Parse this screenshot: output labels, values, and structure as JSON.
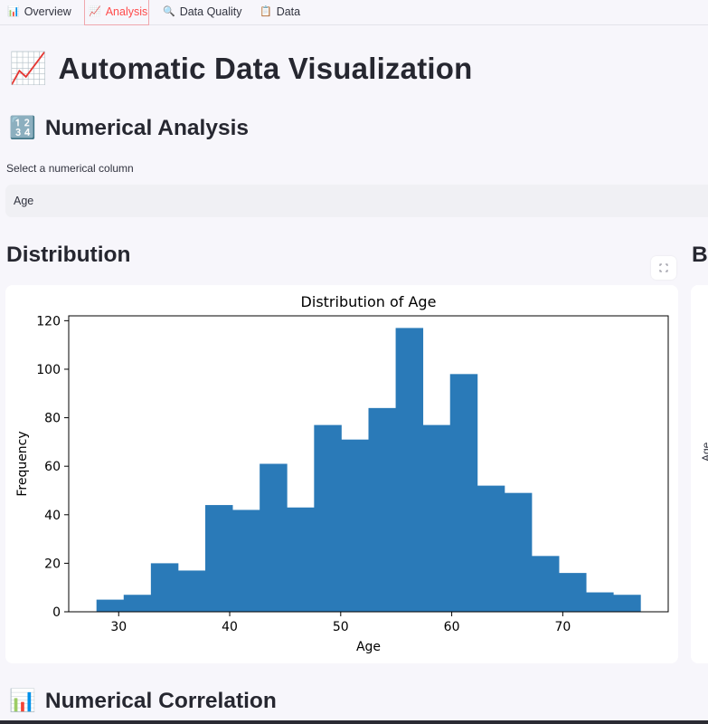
{
  "tabs": [
    {
      "icon": "📊",
      "label": "Overview",
      "active": false
    },
    {
      "icon": "📈",
      "label": "Analysis",
      "active": true
    },
    {
      "icon": "🔍",
      "label": "Data Quality",
      "active": false
    },
    {
      "icon": "📋",
      "label": "Data",
      "active": false
    }
  ],
  "page": {
    "title_icon": "📈",
    "title": "Automatic Data Visualization",
    "numerical_icon": "🔢",
    "numerical_heading": "Numerical Analysis",
    "select_label": "Select a numerical column",
    "select_value": "Age",
    "distribution_heading": "Distribution",
    "box_heading_partial": "Bo",
    "box_axis_partial": "Age",
    "correlation_icon": "📊",
    "correlation_heading": "Numerical Correlation",
    "expand_icon": "expand-icon"
  },
  "chart_data": {
    "type": "bar",
    "title": "Distribution of Age",
    "xlabel": "Age",
    "ylabel": "Frequency",
    "bin_edges": [
      28,
      30.45,
      32.9,
      35.35,
      37.8,
      40.25,
      42.7,
      45.15,
      47.6,
      50.05,
      52.5,
      54.95,
      57.4,
      59.85,
      62.3,
      64.75,
      67.2,
      69.65,
      72.1,
      74.55,
      77
    ],
    "values": [
      5,
      7,
      20,
      17,
      44,
      42,
      61,
      43,
      77,
      71,
      84,
      117,
      77,
      98,
      52,
      49,
      23,
      16,
      8,
      7
    ],
    "xlim": [
      25.5,
      79.5
    ],
    "ylim": [
      0,
      122
    ],
    "xticks": [
      30,
      40,
      50,
      60,
      70
    ],
    "yticks": [
      0,
      20,
      40,
      60,
      80,
      100,
      120
    ],
    "bar_color": "#2a7ab8",
    "grid": false
  }
}
